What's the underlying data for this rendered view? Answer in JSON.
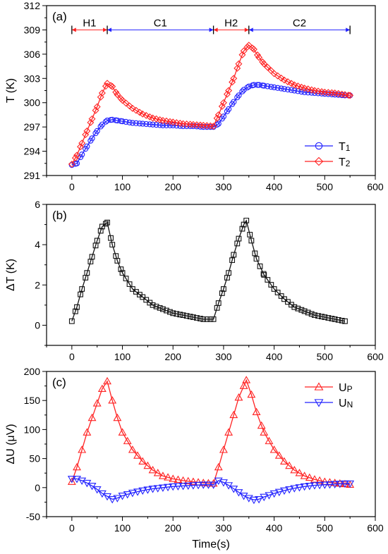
{
  "figure": {
    "xlabel": "Time(s)"
  },
  "colors": {
    "red": "#ff2222",
    "blue": "#2222ff",
    "black": "#111111"
  },
  "chart_data": [
    {
      "type": "scatter",
      "panel_label": "(a)",
      "xlabel": "",
      "ylabel": "T (K)",
      "xlim": [
        -50,
        600
      ],
      "ylim": [
        291,
        312
      ],
      "x_ticks": [
        0,
        100,
        200,
        300,
        400,
        500,
        600
      ],
      "y_ticks": [
        291,
        294,
        297,
        300,
        303,
        306,
        309,
        312
      ],
      "legend_position": "bottom-right",
      "phases": [
        {
          "label": "H1",
          "from": 0,
          "to": 70,
          "color": "red"
        },
        {
          "label": "C1",
          "from": 70,
          "to": 280,
          "color": "blue"
        },
        {
          "label": "H2",
          "from": 280,
          "to": 350,
          "color": "red"
        },
        {
          "label": "C2",
          "from": 350,
          "to": 550,
          "color": "blue"
        }
      ],
      "phase_y": 309,
      "series": [
        {
          "name": "T1",
          "legend_main": "T",
          "legend_sub": "1",
          "color": "blue",
          "marker": "circle",
          "points": [
            [
              0,
              292.3
            ],
            [
              10,
              292.5
            ],
            [
              20,
              293.6
            ],
            [
              30,
              294.6
            ],
            [
              40,
              295.6
            ],
            [
              50,
              296.5
            ],
            [
              60,
              297.3
            ],
            [
              70,
              297.8
            ],
            [
              80,
              297.9
            ],
            [
              90,
              297.8
            ],
            [
              100,
              297.7
            ],
            [
              120,
              297.5
            ],
            [
              140,
              297.4
            ],
            [
              160,
              297.3
            ],
            [
              180,
              297.2
            ],
            [
              200,
              297.2
            ],
            [
              220,
              297.1
            ],
            [
              240,
              297.1
            ],
            [
              260,
              297.0
            ],
            [
              280,
              297.0
            ],
            [
              290,
              297.4
            ],
            [
              300,
              298.3
            ],
            [
              310,
              299.2
            ],
            [
              320,
              300.1
            ],
            [
              330,
              300.9
            ],
            [
              340,
              301.6
            ],
            [
              350,
              302.0
            ],
            [
              360,
              302.2
            ],
            [
              370,
              302.2
            ],
            [
              380,
              302.1
            ],
            [
              400,
              301.9
            ],
            [
              420,
              301.7
            ],
            [
              440,
              301.5
            ],
            [
              460,
              301.3
            ],
            [
              480,
              301.2
            ],
            [
              500,
              301.1
            ],
            [
              520,
              301.0
            ],
            [
              540,
              300.9
            ],
            [
              550,
              300.9
            ]
          ]
        },
        {
          "name": "T2",
          "legend_main": "T",
          "legend_sub": "2",
          "color": "red",
          "marker": "diamond",
          "points": [
            [
              0,
              292.4
            ],
            [
              10,
              293.5
            ],
            [
              20,
              295.0
            ],
            [
              30,
              296.5
            ],
            [
              40,
              298.0
            ],
            [
              50,
              299.5
            ],
            [
              60,
              301.2
            ],
            [
              70,
              302.4
            ],
            [
              80,
              302.0
            ],
            [
              90,
              301.0
            ],
            [
              100,
              300.3
            ],
            [
              120,
              299.3
            ],
            [
              140,
              298.6
            ],
            [
              160,
              298.1
            ],
            [
              180,
              297.8
            ],
            [
              200,
              297.6
            ],
            [
              220,
              297.4
            ],
            [
              240,
              297.3
            ],
            [
              260,
              297.2
            ],
            [
              280,
              297.1
            ],
            [
              290,
              298.5
            ],
            [
              300,
              300.0
            ],
            [
              310,
              301.5
            ],
            [
              320,
              303.0
            ],
            [
              330,
              304.8
            ],
            [
              340,
              306.4
            ],
            [
              350,
              307.1
            ],
            [
              360,
              306.6
            ],
            [
              370,
              305.6
            ],
            [
              380,
              304.8
            ],
            [
              400,
              303.6
            ],
            [
              420,
              302.8
            ],
            [
              440,
              302.2
            ],
            [
              460,
              301.8
            ],
            [
              480,
              301.5
            ],
            [
              500,
              301.3
            ],
            [
              520,
              301.2
            ],
            [
              540,
              301.0
            ],
            [
              550,
              300.9
            ]
          ]
        }
      ]
    },
    {
      "type": "scatter",
      "panel_label": "(b)",
      "xlabel": "",
      "ylabel": "ΔT (K)",
      "xlim": [
        -50,
        600
      ],
      "ylim": [
        -1,
        6
      ],
      "x_ticks": [
        0,
        100,
        200,
        300,
        400,
        500,
        600
      ],
      "y_ticks": [
        0,
        2,
        4,
        6
      ],
      "series": [
        {
          "name": "",
          "color": "black",
          "marker": "square",
          "points": [
            [
              0,
              0.2
            ],
            [
              10,
              0.9
            ],
            [
              20,
              1.8
            ],
            [
              30,
              2.6
            ],
            [
              40,
              3.4
            ],
            [
              50,
              4.2
            ],
            [
              60,
              4.9
            ],
            [
              70,
              5.1
            ],
            [
              80,
              4.0
            ],
            [
              90,
              3.2
            ],
            [
              100,
              2.6
            ],
            [
              120,
              1.8
            ],
            [
              140,
              1.4
            ],
            [
              160,
              1.0
            ],
            [
              180,
              0.8
            ],
            [
              200,
              0.6
            ],
            [
              220,
              0.5
            ],
            [
              240,
              0.4
            ],
            [
              260,
              0.3
            ],
            [
              280,
              0.3
            ],
            [
              290,
              1.1
            ],
            [
              300,
              1.8
            ],
            [
              310,
              2.6
            ],
            [
              320,
              3.5
            ],
            [
              330,
              4.3
            ],
            [
              340,
              5.0
            ],
            [
              345,
              5.2
            ],
            [
              355,
              4.2
            ],
            [
              365,
              3.3
            ],
            [
              380,
              2.5
            ],
            [
              400,
              1.8
            ],
            [
              420,
              1.3
            ],
            [
              440,
              0.9
            ],
            [
              460,
              0.7
            ],
            [
              480,
              0.5
            ],
            [
              500,
              0.4
            ],
            [
              520,
              0.3
            ],
            [
              540,
              0.2
            ]
          ]
        }
      ]
    },
    {
      "type": "line",
      "panel_label": "(c)",
      "xlabel": "Time(s)",
      "ylabel": "ΔU (μV)",
      "xlim": [
        -50,
        600
      ],
      "ylim": [
        -50,
        200
      ],
      "x_ticks": [
        0,
        100,
        200,
        300,
        400,
        500,
        600
      ],
      "y_ticks": [
        -50,
        0,
        50,
        100,
        150,
        200
      ],
      "legend_position": "top-right",
      "series": [
        {
          "name": "UP",
          "legend_main": "U",
          "legend_sub": "P",
          "color": "red",
          "marker": "triangle-up",
          "points": [
            [
              0,
              10
            ],
            [
              10,
              35
            ],
            [
              20,
              65
            ],
            [
              30,
              95
            ],
            [
              40,
              120
            ],
            [
              50,
              145
            ],
            [
              60,
              170
            ],
            [
              70,
              183
            ],
            [
              80,
              150
            ],
            [
              90,
              120
            ],
            [
              100,
              95
            ],
            [
              120,
              65
            ],
            [
              140,
              45
            ],
            [
              160,
              30
            ],
            [
              180,
              20
            ],
            [
              200,
              15
            ],
            [
              220,
              12
            ],
            [
              240,
              10
            ],
            [
              260,
              8
            ],
            [
              280,
              7
            ],
            [
              290,
              35
            ],
            [
              300,
              65
            ],
            [
              310,
              95
            ],
            [
              320,
              125
            ],
            [
              330,
              155
            ],
            [
              340,
              175
            ],
            [
              345,
              185
            ],
            [
              355,
              160
            ],
            [
              365,
              130
            ],
            [
              380,
              95
            ],
            [
              400,
              65
            ],
            [
              420,
              45
            ],
            [
              440,
              30
            ],
            [
              460,
              20
            ],
            [
              480,
              14
            ],
            [
              500,
              10
            ],
            [
              520,
              8
            ],
            [
              540,
              6
            ],
            [
              550,
              5
            ]
          ]
        },
        {
          "name": "UN",
          "legend_main": "U",
          "legend_sub": "N",
          "color": "blue",
          "marker": "triangle-down",
          "points": [
            [
              0,
              15
            ],
            [
              10,
              15
            ],
            [
              20,
              12
            ],
            [
              30,
              8
            ],
            [
              40,
              3
            ],
            [
              50,
              -3
            ],
            [
              60,
              -10
            ],
            [
              70,
              -15
            ],
            [
              80,
              -20
            ],
            [
              90,
              -18
            ],
            [
              100,
              -14
            ],
            [
              120,
              -9
            ],
            [
              140,
              -5
            ],
            [
              160,
              -2
            ],
            [
              180,
              0
            ],
            [
              200,
              2
            ],
            [
              220,
              3
            ],
            [
              240,
              4
            ],
            [
              260,
              5
            ],
            [
              280,
              5
            ],
            [
              290,
              12
            ],
            [
              300,
              9
            ],
            [
              310,
              4
            ],
            [
              320,
              -2
            ],
            [
              330,
              -8
            ],
            [
              340,
              -14
            ],
            [
              350,
              -18
            ],
            [
              360,
              -21
            ],
            [
              370,
              -20
            ],
            [
              380,
              -16
            ],
            [
              400,
              -10
            ],
            [
              420,
              -5
            ],
            [
              440,
              -1
            ],
            [
              460,
              2
            ],
            [
              480,
              4
            ],
            [
              500,
              5
            ],
            [
              520,
              6
            ],
            [
              540,
              7
            ],
            [
              550,
              7
            ]
          ]
        }
      ]
    }
  ]
}
